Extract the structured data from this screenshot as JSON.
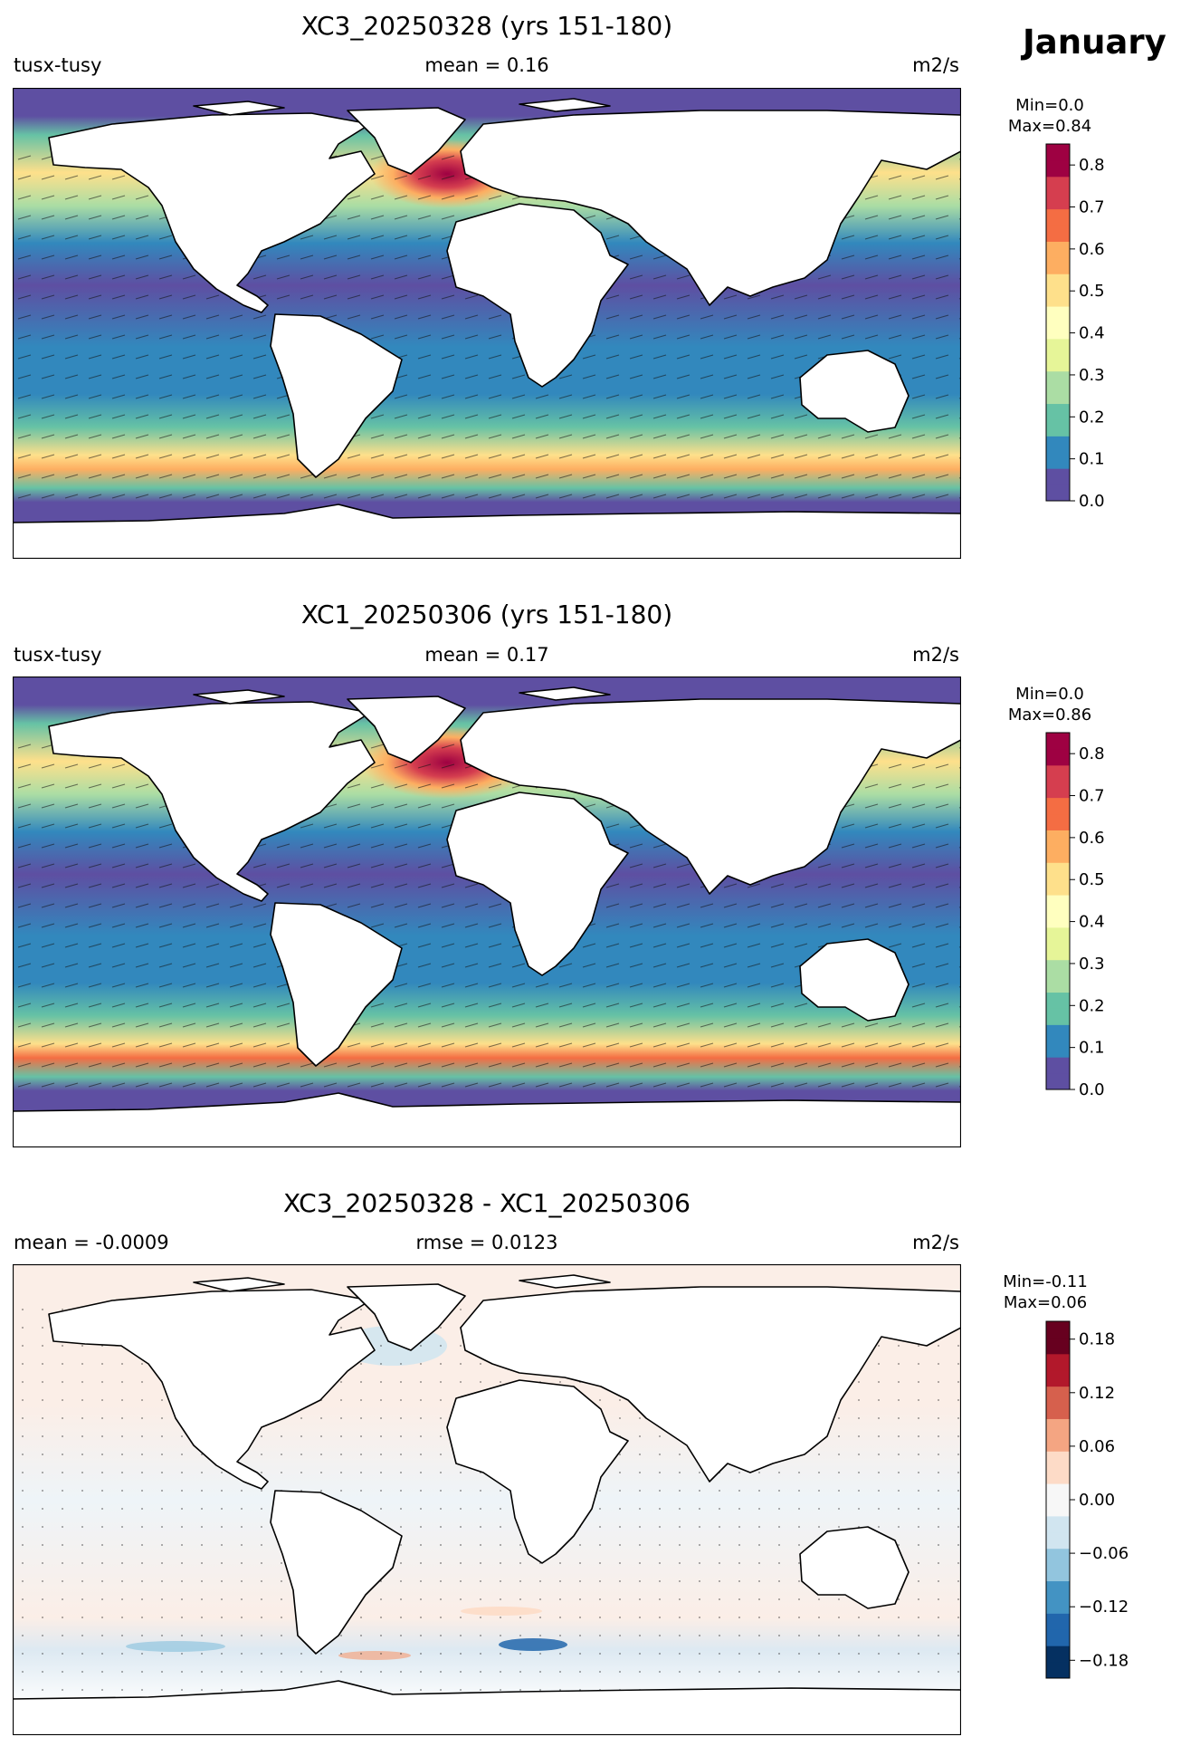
{
  "month": "January",
  "colormaps": {
    "spectral": [
      "#5e4fa2",
      "#3288bd",
      "#66c2a5",
      "#abdda4",
      "#e6f598",
      "#ffffbf",
      "#fee08b",
      "#fdae61",
      "#f46d43",
      "#d53e4f",
      "#9e0142"
    ],
    "rdbu": [
      "#053061",
      "#2166ac",
      "#4393c3",
      "#92c5de",
      "#d1e5f0",
      "#f7f7f7",
      "#fddbc7",
      "#f4a582",
      "#d6604d",
      "#b2182b",
      "#67001f"
    ]
  },
  "panels": [
    {
      "title": "XC3_20250328 (yrs 151-180)",
      "left_label": "tusx-tusy",
      "center_label": "mean = 0.16",
      "right_label": "m2/s",
      "min_label": "Min=0.0",
      "max_label": "Max=0.84",
      "colorbar": {
        "cmap": "spectral",
        "vmin": 0.0,
        "vmax": 0.85,
        "ticks": [
          0.0,
          0.1,
          0.2,
          0.3,
          0.4,
          0.5,
          0.6,
          0.7,
          0.8
        ],
        "tick_labels": [
          "0.0",
          "0.1",
          "0.2",
          "0.3",
          "0.4",
          "0.5",
          "0.6",
          "0.7",
          "0.8"
        ]
      }
    },
    {
      "title": "XC1_20250306 (yrs 151-180)",
      "left_label": "tusx-tusy",
      "center_label": "mean = 0.17",
      "right_label": "m2/s",
      "min_label": "Min=0.0",
      "max_label": "Max=0.86",
      "colorbar": {
        "cmap": "spectral",
        "vmin": 0.0,
        "vmax": 0.85,
        "ticks": [
          0.0,
          0.1,
          0.2,
          0.3,
          0.4,
          0.5,
          0.6,
          0.7,
          0.8
        ],
        "tick_labels": [
          "0.0",
          "0.1",
          "0.2",
          "0.3",
          "0.4",
          "0.5",
          "0.6",
          "0.7",
          "0.8"
        ]
      }
    },
    {
      "title": "XC3_20250328 - XC1_20250306",
      "left_label": "mean = -0.0009",
      "center_label": "rmse = 0.0123",
      "right_label": "m2/s",
      "min_label": "Min=-0.11",
      "max_label": "Max=0.06",
      "colorbar": {
        "cmap": "rdbu",
        "vmin": -0.2,
        "vmax": 0.2,
        "ticks": [
          -0.18,
          -0.12,
          -0.06,
          0.0,
          0.06,
          0.12,
          0.18
        ],
        "tick_labels": [
          "−0.18",
          "−0.12",
          "−0.06",
          "0.00",
          "0.06",
          "0.12",
          "0.18"
        ]
      }
    }
  ]
}
